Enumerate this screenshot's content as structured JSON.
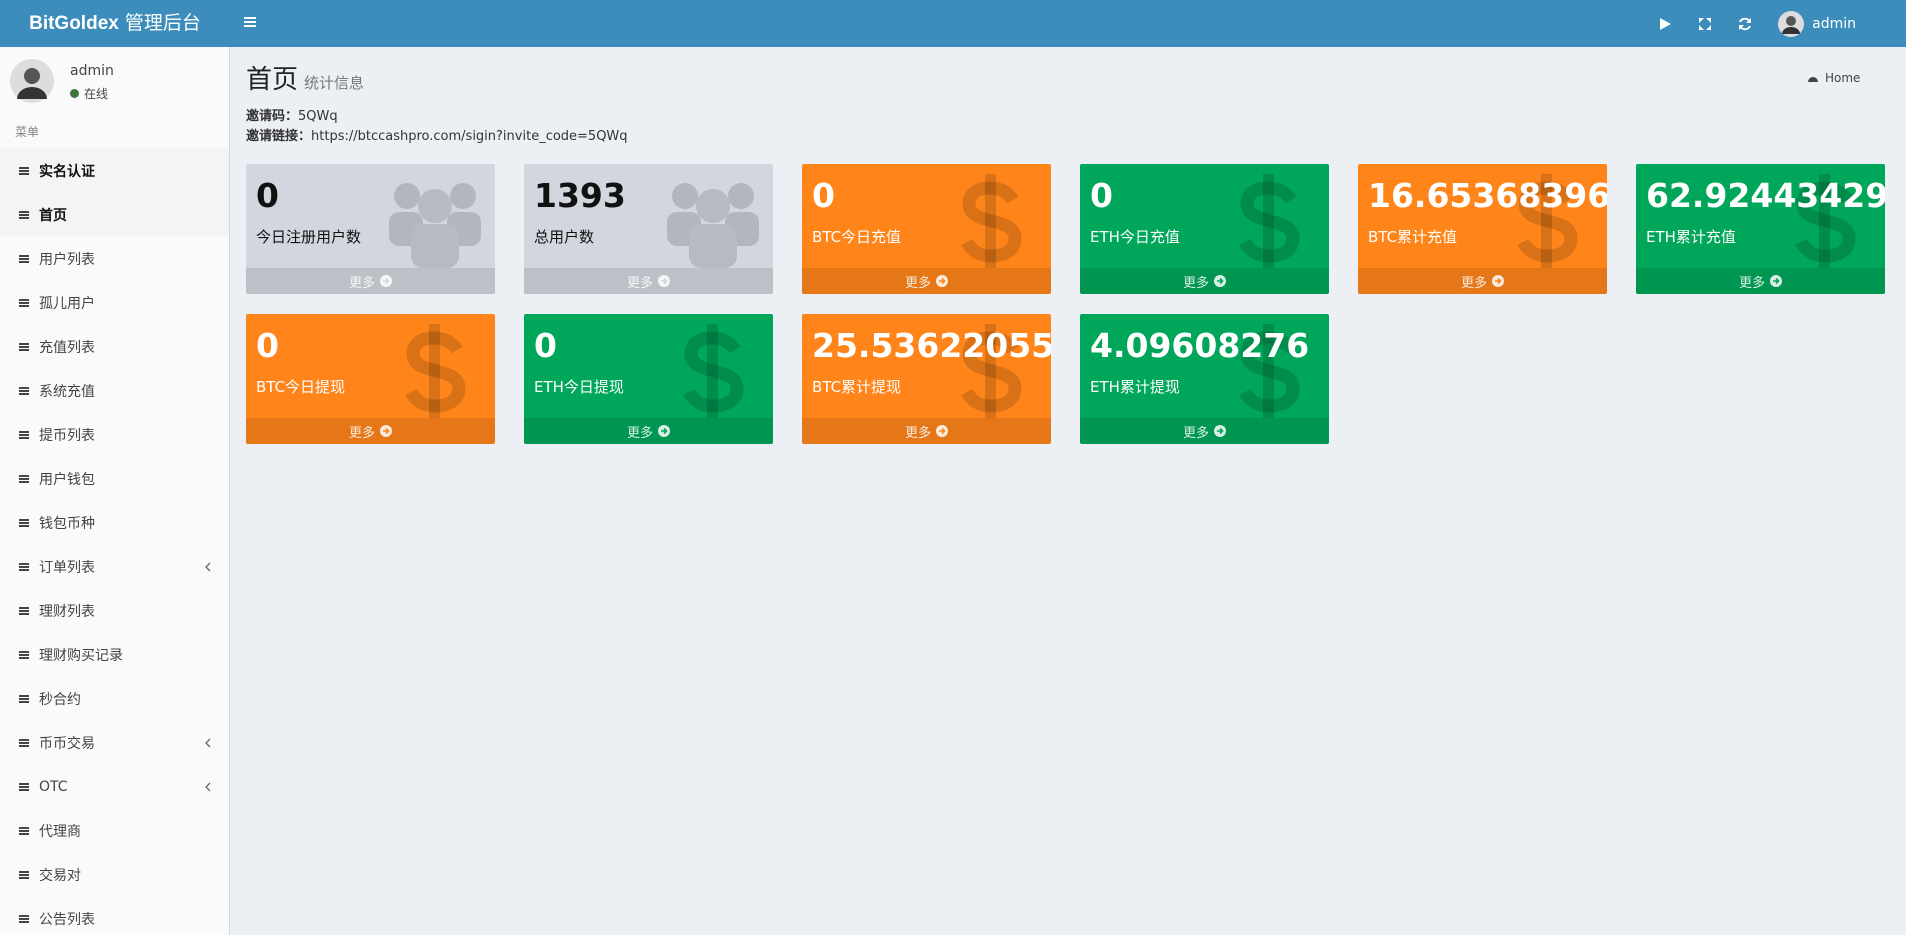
{
  "header": {
    "brand": "BitGoldex",
    "brand_suffix": "管理后台",
    "user": "admin"
  },
  "sidebar": {
    "user": "admin",
    "status": "在线",
    "menu_title": "菜单",
    "items": [
      {
        "label": "实名认证",
        "active": true
      },
      {
        "label": "首页",
        "active": true
      },
      {
        "label": "用户列表"
      },
      {
        "label": "孤儿用户"
      },
      {
        "label": "充值列表"
      },
      {
        "label": "系统充值"
      },
      {
        "label": "提币列表"
      },
      {
        "label": "用户钱包"
      },
      {
        "label": "钱包币种"
      },
      {
        "label": "订单列表",
        "has_children": true
      },
      {
        "label": "理财列表"
      },
      {
        "label": "理财购买记录"
      },
      {
        "label": "秒合约"
      },
      {
        "label": "币币交易",
        "has_children": true
      },
      {
        "label": "OTC",
        "has_children": true
      },
      {
        "label": "代理商"
      },
      {
        "label": "交易对"
      },
      {
        "label": "公告列表"
      }
    ]
  },
  "content": {
    "title": "首页",
    "subtitle": "统计信息",
    "breadcrumb": "Home",
    "invite_code_label": "邀请码：",
    "invite_code": "5QWq",
    "invite_link_label": "邀请链接：",
    "invite_link": "https://btccashpro.com/sigin?invite_code=5QWq"
  },
  "boxes": [
    {
      "value": 0,
      "label": "今日注册用户数",
      "more": "更多",
      "icon": "users",
      "color": "#d2d6de"
    },
    {
      "value": 1393,
      "label": "总用户数",
      "more": "更多",
      "icon": "users",
      "color": "#d2d6de"
    },
    {
      "value": 0,
      "label": "BTC今日充值",
      "more": "更多",
      "icon": "dollar",
      "color": "#ff851b"
    },
    {
      "value": 0,
      "label": "ETH今日充值",
      "more": "更多",
      "icon": "dollar",
      "color": "#00a65a"
    },
    {
      "value": 16.65368396,
      "label": "BTC累计充值",
      "more": "更多",
      "icon": "dollar",
      "color": "#ff851b"
    },
    {
      "value": 62.92443429,
      "label": "ETH累计充值",
      "more": "更多",
      "icon": "dollar",
      "color": "#00a65a"
    },
    {
      "value": 0,
      "label": "BTC今日提现",
      "more": "更多",
      "icon": "dollar",
      "color": "#ff851b"
    },
    {
      "value": 0,
      "label": "ETH今日提现",
      "more": "更多",
      "icon": "dollar",
      "color": "#00a65a"
    },
    {
      "value": 25.53622055,
      "label": "BTC累计提现",
      "more": "更多",
      "icon": "dollar",
      "color": "#ff851b"
    },
    {
      "value": 4.09608276,
      "label": "ETH累计提现",
      "more": "更多",
      "icon": "dollar",
      "color": "#00a65a"
    }
  ]
}
